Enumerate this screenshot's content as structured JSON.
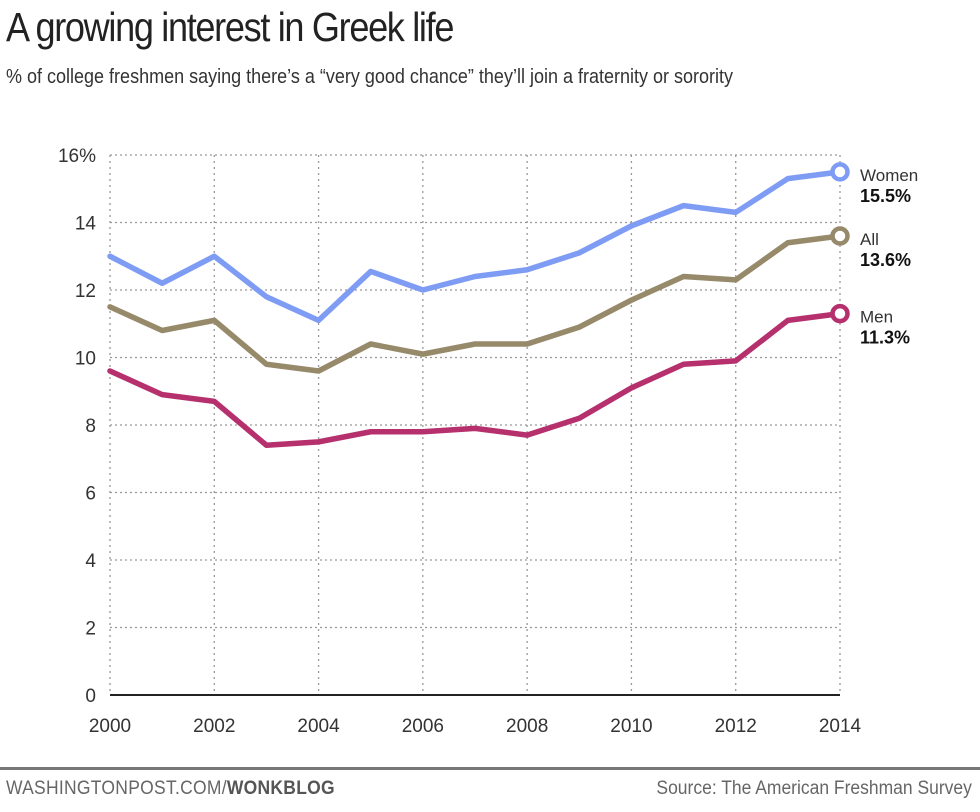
{
  "chart_data": {
    "type": "line",
    "title": "A growing interest in Greek life",
    "subtitle": "% of college freshmen saying there’s a “very good chance” they’ll join a fraternity or sorority",
    "xlabel": "",
    "ylabel": "",
    "x": [
      2000,
      2001,
      2002,
      2003,
      2004,
      2005,
      2006,
      2007,
      2008,
      2009,
      2010,
      2011,
      2012,
      2013,
      2014
    ],
    "xlim": [
      2000,
      2014
    ],
    "ylim": [
      0,
      16
    ],
    "grid": true,
    "x_ticks": [
      "2000",
      "2002",
      "2004",
      "2006",
      "2008",
      "2010",
      "2012",
      "2014"
    ],
    "x_tick_values": [
      2000,
      2002,
      2004,
      2006,
      2008,
      2010,
      2012,
      2014
    ],
    "y_ticks": [
      "0",
      "2",
      "4",
      "6",
      "8",
      "10",
      "12",
      "14",
      "16%"
    ],
    "y_tick_values": [
      0,
      2,
      4,
      6,
      8,
      10,
      12,
      14,
      16
    ],
    "series": [
      {
        "name": "Women",
        "color": "#7f9cf5",
        "end_label": "15.5%",
        "values": [
          13.0,
          12.2,
          13.0,
          11.8,
          11.1,
          12.55,
          12.0,
          12.4,
          12.6,
          13.1,
          13.9,
          14.5,
          14.3,
          15.3,
          15.5
        ]
      },
      {
        "name": "All",
        "color": "#978a6a",
        "end_label": "13.6%",
        "values": [
          11.5,
          10.8,
          11.1,
          9.8,
          9.6,
          10.4,
          10.1,
          10.4,
          10.4,
          10.9,
          11.7,
          12.4,
          12.3,
          13.4,
          13.6
        ]
      },
      {
        "name": "Men",
        "color": "#b5306d",
        "end_label": "11.3%",
        "values": [
          9.6,
          8.9,
          8.7,
          7.4,
          7.5,
          7.8,
          7.8,
          7.9,
          7.7,
          8.2,
          9.1,
          9.8,
          9.9,
          11.1,
          11.3
        ]
      }
    ]
  },
  "footer": {
    "site": "WASHINGTONPOST.COM/",
    "section": "WONKBLOG",
    "source": "Source: The American Freshman Survey"
  }
}
